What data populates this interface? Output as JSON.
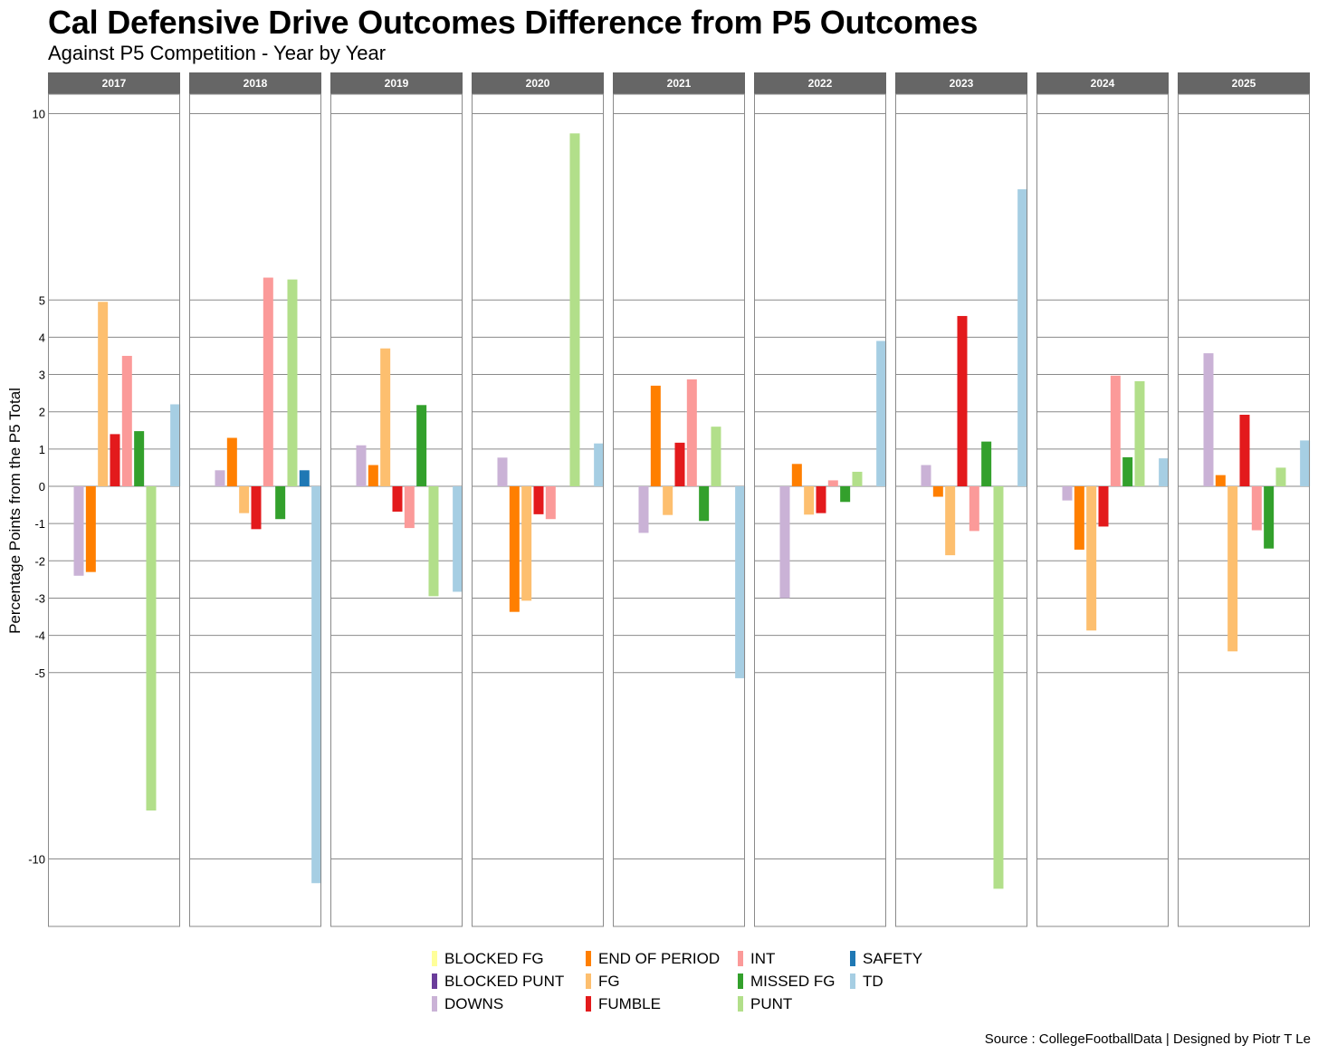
{
  "title": "Cal Defensive Drive Outcomes Difference from P5 Outcomes",
  "subtitle": "Against P5 Competition - Year by Year",
  "caption": "Source : CollegeFootballData | Designed by Piotr T Le",
  "chart_data": {
    "type": "bar",
    "facet_by": "year",
    "ylabel": "Percentage Points from the P5 Total",
    "xlabel": "",
    "ylim": [
      -11.8,
      10.5
    ],
    "yticks": [
      10,
      5,
      4,
      3,
      2,
      1,
      0,
      -1,
      -2,
      -3,
      -4,
      -5,
      -10
    ],
    "ytick_labels": [
      "10",
      "5",
      "4",
      "3",
      "2",
      "1",
      "0",
      "-1",
      "-2",
      "-3",
      "-4",
      "-5",
      "-10"
    ],
    "grid": true,
    "legend_position": "bottom",
    "categories": [
      "BLOCKED FG",
      "BLOCKED PUNT",
      "DOWNS",
      "END OF PERIOD",
      "FG",
      "FUMBLE",
      "INT",
      "MISSED FG",
      "PUNT",
      "SAFETY",
      "TD"
    ],
    "colors": {
      "BLOCKED FG": "#FFFF99",
      "BLOCKED PUNT": "#6A3D9A",
      "DOWNS": "#CAB2D6",
      "END OF PERIOD": "#FF7F00",
      "FG": "#FDBF6F",
      "FUMBLE": "#E31A1C",
      "INT": "#FB9A99",
      "MISSED FG": "#33A02C",
      "PUNT": "#B2DF8A",
      "SAFETY": "#1F78B4",
      "TD": "#A6CEE3"
    },
    "panels": [
      {
        "year": "2017",
        "bars": [
          {
            "category": "DOWNS",
            "value": -2.4
          },
          {
            "category": "END OF PERIOD",
            "value": -2.3
          },
          {
            "category": "FG",
            "value": 4.95
          },
          {
            "category": "FUMBLE",
            "value": 1.4
          },
          {
            "category": "INT",
            "value": 3.5
          },
          {
            "category": "MISSED FG",
            "value": 1.48
          },
          {
            "category": "PUNT",
            "value": -8.7
          },
          {
            "category": "TD",
            "value": 2.2
          }
        ]
      },
      {
        "year": "2018",
        "bars": [
          {
            "category": "DOWNS",
            "value": 0.43
          },
          {
            "category": "END OF PERIOD",
            "value": 1.3
          },
          {
            "category": "FG",
            "value": -0.72
          },
          {
            "category": "FUMBLE",
            "value": -1.15
          },
          {
            "category": "INT",
            "value": 5.6
          },
          {
            "category": "MISSED FG",
            "value": -0.88
          },
          {
            "category": "PUNT",
            "value": 5.55
          },
          {
            "category": "SAFETY",
            "value": 0.43
          },
          {
            "category": "TD",
            "value": -10.65
          }
        ]
      },
      {
        "year": "2019",
        "bars": [
          {
            "category": "DOWNS",
            "value": 1.1
          },
          {
            "category": "END OF PERIOD",
            "value": 0.57
          },
          {
            "category": "FG",
            "value": 3.7
          },
          {
            "category": "FUMBLE",
            "value": -0.68
          },
          {
            "category": "INT",
            "value": -1.12
          },
          {
            "category": "MISSED FG",
            "value": 2.18
          },
          {
            "category": "PUNT",
            "value": -2.95
          },
          {
            "category": "TD",
            "value": -2.83
          }
        ]
      },
      {
        "year": "2020",
        "bars": [
          {
            "category": "DOWNS",
            "value": 0.77
          },
          {
            "category": "END OF PERIOD",
            "value": -3.37
          },
          {
            "category": "FG",
            "value": -3.07
          },
          {
            "category": "FUMBLE",
            "value": -0.75
          },
          {
            "category": "INT",
            "value": -0.88
          },
          {
            "category": "PUNT",
            "value": 9.47
          },
          {
            "category": "TD",
            "value": 1.15
          }
        ]
      },
      {
        "year": "2021",
        "bars": [
          {
            "category": "DOWNS",
            "value": -1.25
          },
          {
            "category": "END OF PERIOD",
            "value": 2.7
          },
          {
            "category": "FG",
            "value": -0.77
          },
          {
            "category": "FUMBLE",
            "value": 1.17
          },
          {
            "category": "INT",
            "value": 2.87
          },
          {
            "category": "MISSED FG",
            "value": -0.93
          },
          {
            "category": "PUNT",
            "value": 1.6
          },
          {
            "category": "TD",
            "value": -5.15
          }
        ]
      },
      {
        "year": "2022",
        "bars": [
          {
            "category": "DOWNS",
            "value": -3.0
          },
          {
            "category": "END OF PERIOD",
            "value": 0.6
          },
          {
            "category": "FG",
            "value": -0.76
          },
          {
            "category": "FUMBLE",
            "value": -0.72
          },
          {
            "category": "INT",
            "value": 0.16
          },
          {
            "category": "MISSED FG",
            "value": -0.42
          },
          {
            "category": "PUNT",
            "value": 0.39
          },
          {
            "category": "TD",
            "value": 3.9
          }
        ]
      },
      {
        "year": "2023",
        "bars": [
          {
            "category": "DOWNS",
            "value": 0.57
          },
          {
            "category": "END OF PERIOD",
            "value": -0.28
          },
          {
            "category": "FG",
            "value": -1.85
          },
          {
            "category": "FUMBLE",
            "value": 4.57
          },
          {
            "category": "INT",
            "value": -1.2
          },
          {
            "category": "MISSED FG",
            "value": 1.2
          },
          {
            "category": "PUNT",
            "value": -10.8
          },
          {
            "category": "TD",
            "value": 7.97
          }
        ]
      },
      {
        "year": "2024",
        "bars": [
          {
            "category": "DOWNS",
            "value": -0.38
          },
          {
            "category": "END OF PERIOD",
            "value": -1.7
          },
          {
            "category": "FG",
            "value": -3.87
          },
          {
            "category": "FUMBLE",
            "value": -1.08
          },
          {
            "category": "INT",
            "value": 2.97
          },
          {
            "category": "MISSED FG",
            "value": 0.78
          },
          {
            "category": "PUNT",
            "value": 2.82
          },
          {
            "category": "TD",
            "value": 0.75
          }
        ]
      },
      {
        "year": "2025",
        "bars": [
          {
            "category": "DOWNS",
            "value": 3.57
          },
          {
            "category": "END OF PERIOD",
            "value": 0.3
          },
          {
            "category": "FG",
            "value": -4.43
          },
          {
            "category": "FUMBLE",
            "value": 1.92
          },
          {
            "category": "INT",
            "value": -1.18
          },
          {
            "category": "MISSED FG",
            "value": -1.67
          },
          {
            "category": "PUNT",
            "value": 0.5
          },
          {
            "category": "TD",
            "value": 1.23
          }
        ]
      }
    ]
  }
}
